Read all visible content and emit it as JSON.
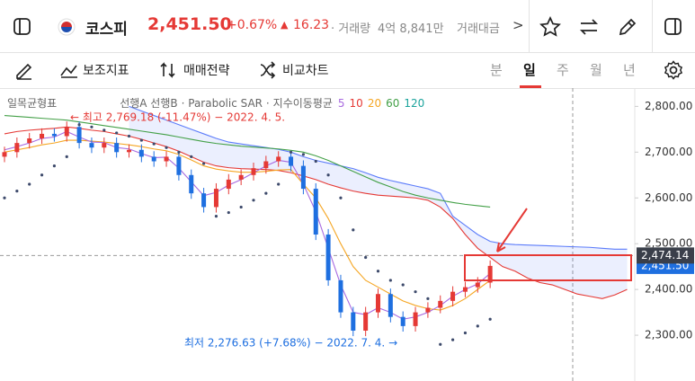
{
  "header": {
    "symbol": "코스피",
    "price": "2,451.50",
    "change_pct": "+0.67%",
    "change_arrow": "▲",
    "change": "16.23",
    "volume_label": "· 거래량",
    "volume": "4억 8,841만",
    "amount_label": "거래대금",
    "more": ">"
  },
  "toolbar": {
    "indicators": "보조지표",
    "strategy": "매매전략",
    "compare": "비교차트",
    "periods": [
      "분",
      "일",
      "주",
      "월",
      "년"
    ],
    "selected_period": 1
  },
  "chart_data": {
    "type": "candlestick",
    "legend": {
      "ichimoku": "일목균형표",
      "spans": "선행A 선행B",
      "sar": "· Parabolic SAR ·",
      "ema": "지수이동평균",
      "periods": [
        {
          "label": "5",
          "color": "#a86ae0"
        },
        {
          "label": "10",
          "color": "#e53935"
        },
        {
          "label": "20",
          "color": "#f5a623"
        },
        {
          "label": "60",
          "color": "#43a047"
        },
        {
          "label": "120",
          "color": "#1ba39c"
        }
      ]
    },
    "annotations": {
      "high": "← 최고 2,769.18 (-11.47%) − 2022. 4. 5.",
      "low": "최저 2,276.63 (+7.68%) − 2022. 7. 4. →"
    },
    "ylim": [
      2200,
      2840
    ],
    "yticks": [
      {
        "value": 2800,
        "label": "2,800.00"
      },
      {
        "value": 2700,
        "label": "2,700.00"
      },
      {
        "value": 2600,
        "label": "2,600.00"
      },
      {
        "value": 2500,
        "label": "2,500.00"
      },
      {
        "value": 2400,
        "label": "2,400.00"
      },
      {
        "value": 2300,
        "label": "2,300.00"
      }
    ],
    "crosshair": {
      "value": 2474.14,
      "label": "2,474.14"
    },
    "last_price": {
      "value": 2451.5,
      "label": "2,451.50"
    },
    "up_color": "#e53935",
    "down_color": "#1e6fe0",
    "candles": {
      "open": [
        2690,
        2700,
        2720,
        2730,
        2740,
        2735,
        2755,
        2720,
        2710,
        2720,
        2700,
        2705,
        2690,
        2680,
        2690,
        2650,
        2610,
        2580,
        2620,
        2640,
        2650,
        2665,
        2680,
        2690,
        2670,
        2620,
        2520,
        2420,
        2350,
        2310,
        2350,
        2390,
        2340,
        2320,
        2350,
        2360,
        2375,
        2395,
        2405,
        2415
      ],
      "high": [
        2712,
        2732,
        2742,
        2752,
        2752,
        2767,
        2767,
        2732,
        2732,
        2732,
        2717,
        2717,
        2702,
        2702,
        2702,
        2662,
        2622,
        2632,
        2652,
        2662,
        2677,
        2692,
        2702,
        2702,
        2682,
        2632,
        2532,
        2432,
        2362,
        2362,
        2402,
        2402,
        2352,
        2362,
        2372,
        2387,
        2407,
        2417,
        2427,
        2463.5
      ],
      "low": [
        2678,
        2688,
        2708,
        2718,
        2723,
        2723,
        2708,
        2698,
        2698,
        2688,
        2688,
        2678,
        2668,
        2668,
        2638,
        2598,
        2568,
        2568,
        2608,
        2628,
        2638,
        2653,
        2668,
        2658,
        2608,
        2508,
        2408,
        2338,
        2298,
        2298,
        2338,
        2328,
        2308,
        2308,
        2338,
        2348,
        2363,
        2383,
        2393,
        2403
      ],
      "close": [
        2700,
        2720,
        2730,
        2740,
        2735,
        2755,
        2720,
        2710,
        2720,
        2700,
        2705,
        2690,
        2680,
        2690,
        2650,
        2610,
        2580,
        2620,
        2640,
        2650,
        2665,
        2680,
        2690,
        2670,
        2620,
        2520,
        2420,
        2350,
        2310,
        2350,
        2390,
        2340,
        2320,
        2350,
        2360,
        2375,
        2395,
        2405,
        2415,
        2451.5
      ]
    },
    "series": [
      {
        "color": "#5c7cfa",
        "values": [
          null,
          null,
          null,
          null,
          null,
          null,
          null,
          null,
          null,
          null,
          2800,
          2790,
          2780,
          2770,
          2760,
          2750,
          2740,
          2730,
          2722,
          2718,
          2714,
          2710,
          2706,
          2700,
          2690,
          2682,
          2676,
          2670,
          2664,
          2655,
          2645,
          2638,
          2632,
          2626,
          2620,
          2610,
          2560,
          2540,
          2520,
          2505,
          2500,
          2498,
          2497,
          2496,
          2495,
          2494,
          2493,
          2492,
          2490,
          2488,
          2488
        ]
      },
      {
        "color": "#e53935",
        "values": [
          2740,
          2745,
          2748,
          2750,
          2752,
          2755,
          2752,
          2748,
          2745,
          2740,
          2735,
          2728,
          2720,
          2712,
          2702,
          2690,
          2678,
          2670,
          2666,
          2664,
          2663,
          2662,
          2660,
          2655,
          2648,
          2640,
          2630,
          2622,
          2615,
          2610,
          2606,
          2604,
          2602,
          2600,
          2595,
          2580,
          2555,
          2520,
          2490,
          2470,
          2450,
          2440,
          2425,
          2415,
          2410,
          2400,
          2390,
          2385,
          2380,
          2388,
          2400
        ]
      },
      {
        "color": "#43a047",
        "values": [
          2780,
          2778,
          2776,
          2774,
          2772,
          2770,
          2766,
          2762,
          2758,
          2754,
          2750,
          2746,
          2742,
          2738,
          2733,
          2728,
          2723,
          2719,
          2716,
          2713,
          2711,
          2709,
          2707,
          2704,
          2700,
          2692,
          2682,
          2670,
          2658,
          2646,
          2634,
          2624,
          2614,
          2606,
          2600,
          2595,
          2590,
          2586,
          2583,
          2580
        ]
      },
      {
        "color": "#f5a623",
        "values": [
          2700,
          2705,
          2710,
          2716,
          2720,
          2726,
          2726,
          2724,
          2722,
          2719,
          2716,
          2712,
          2707,
          2703,
          2695,
          2683,
          2670,
          2663,
          2659,
          2656,
          2656,
          2658,
          2661,
          2662,
          2630,
          2600,
          2555,
          2500,
          2450,
          2420,
          2405,
          2390,
          2375,
          2365,
          2358,
          2355,
          2365,
          2380,
          2400,
          2420
        ]
      },
      {
        "color": "#a86ae0",
        "values": [
          2705,
          2712,
          2720,
          2730,
          2733,
          2745,
          2733,
          2722,
          2721,
          2710,
          2707,
          2697,
          2688,
          2689,
          2665,
          2635,
          2605,
          2612,
          2628,
          2640,
          2655,
          2670,
          2682,
          2678,
          2630,
          2570,
          2490,
          2410,
          2350,
          2345,
          2360,
          2350,
          2335,
          2340,
          2350,
          2365,
          2385,
          2400,
          2412,
          2435
        ]
      }
    ],
    "sar": {
      "color": "#3d4a6b",
      "values": [
        2600,
        2615,
        2630,
        2650,
        2670,
        2690,
        2760,
        2755,
        2748,
        2742,
        2735,
        2726,
        2718,
        2710,
        2700,
        2690,
        2675,
        2560,
        2568,
        2580,
        2595,
        2610,
        2630,
        2700,
        2695,
        2680,
        2650,
        2600,
        2530,
        2470,
        2440,
        2420,
        2410,
        2395,
        2380,
        2280,
        2290,
        2305,
        2320,
        2335
      ]
    }
  }
}
